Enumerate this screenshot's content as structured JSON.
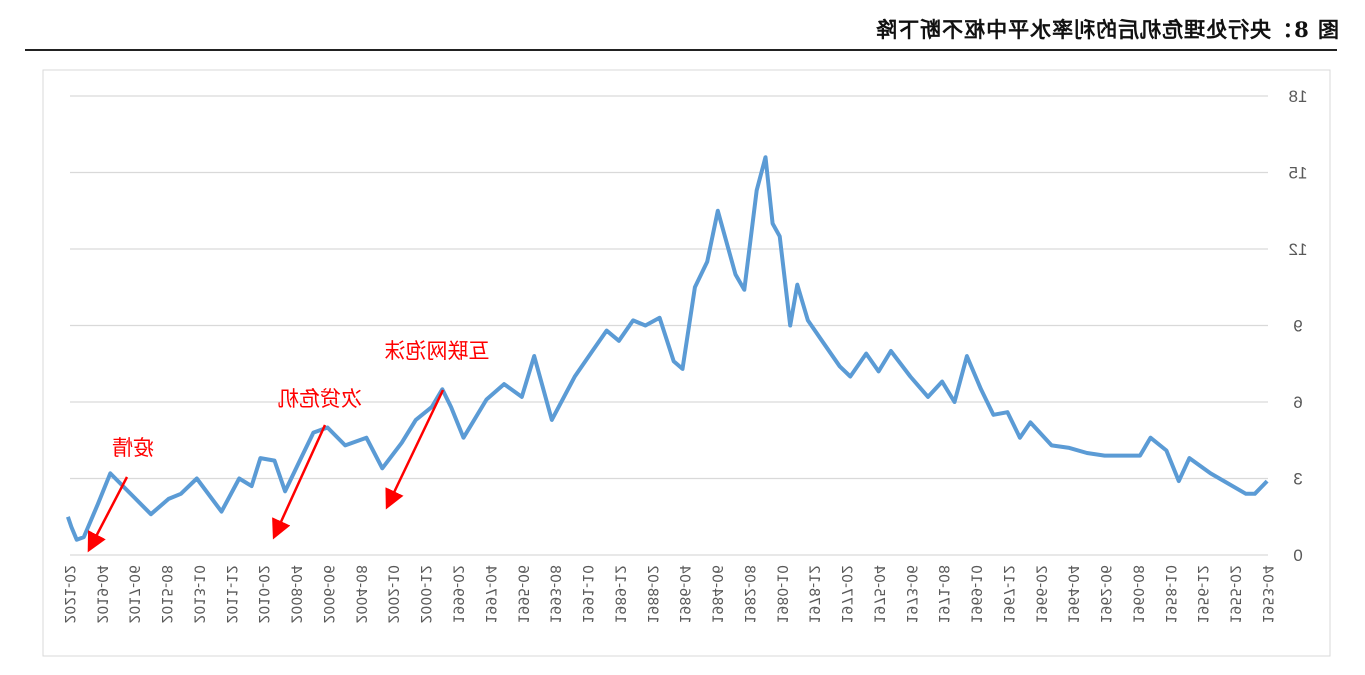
{
  "title": "图 8：央行处理危机后的利率水平中枢不断下降",
  "chart_data": {
    "type": "line",
    "title": "",
    "xlabel": "",
    "ylabel": "",
    "ylim": [
      0,
      18
    ],
    "yticks": [
      0,
      3,
      6,
      9,
      12,
      15,
      18
    ],
    "grid": true,
    "mirrored": true,
    "line_color": "#5b9bd5",
    "xtick_labels": [
      "1953-04",
      "1955-02",
      "1956-12",
      "1958-10",
      "1960-08",
      "1962-06",
      "1964-04",
      "1966-02",
      "1967-12",
      "1969-10",
      "1971-08",
      "1973-06",
      "1975-04",
      "1977-02",
      "1978-12",
      "1980-10",
      "1982-08",
      "1984-06",
      "1986-04",
      "1988-02",
      "1989-12",
      "1991-10",
      "1993-08",
      "1995-06",
      "1997-04",
      "1999-02",
      "2000-12",
      "2002-10",
      "2004-08",
      "2006-06",
      "2008-04",
      "2010-02",
      "2011-12",
      "2013-10",
      "2015-08",
      "2017-06",
      "2019-04",
      "2021-02"
    ],
    "series": [
      {
        "x": [
          1953.3,
          1954.0,
          1954.5,
          1955.5,
          1956.5,
          1957.7,
          1958.3,
          1959.0,
          1959.9,
          1960.5,
          1961.5,
          1962.5,
          1963.5,
          1964.5,
          1965.5,
          1966.7,
          1967.3,
          1968.0,
          1968.8,
          1969.5,
          1970.3,
          1971.0,
          1971.7,
          1972.5,
          1973.5,
          1974.6,
          1975.3,
          1976.0,
          1976.9,
          1977.5,
          1978.5,
          1979.3,
          1979.9,
          1980.3,
          1980.9,
          1981.3,
          1981.7,
          1982.2,
          1982.9,
          1983.4,
          1984.4,
          1985.0,
          1985.7,
          1986.4,
          1986.9,
          1987.7,
          1988.5,
          1989.2,
          1990.0,
          1990.7,
          1991.5,
          1992.5,
          1993.8,
          1994.8,
          1995.5,
          1996.5,
          1997.5,
          1998.8,
          1999.5,
          2000.0,
          2000.6,
          2001.5,
          2002.3,
          2003.4,
          2004.3,
          2005.5,
          2006.5,
          2007.3,
          2008.0,
          2008.9,
          2009.5,
          2010.3,
          2010.8,
          2011.5,
          2012.5,
          2013.9,
          2014.8,
          2015.5,
          2016.5,
          2017.5,
          2018.8,
          2019.5,
          2020.3,
          2020.7,
          2021.0,
          2021.2
        ],
        "y": [
          2.9,
          2.4,
          2.4,
          2.8,
          3.2,
          3.8,
          2.9,
          4.1,
          4.6,
          3.9,
          3.9,
          3.9,
          4.0,
          4.2,
          4.3,
          5.2,
          4.6,
          5.6,
          5.5,
          6.5,
          7.8,
          6.0,
          6.8,
          6.2,
          7.0,
          8.0,
          7.2,
          7.9,
          7.0,
          7.4,
          8.4,
          9.2,
          10.6,
          9.0,
          12.5,
          13.0,
          15.6,
          14.3,
          10.4,
          11.0,
          13.5,
          11.5,
          10.5,
          7.3,
          7.6,
          9.3,
          9.0,
          9.2,
          8.4,
          8.8,
          8.0,
          7.0,
          5.3,
          7.8,
          6.2,
          6.7,
          6.1,
          4.6,
          5.8,
          6.5,
          5.8,
          5.3,
          4.4,
          3.4,
          4.6,
          4.3,
          5.0,
          4.8,
          3.8,
          2.5,
          3.7,
          3.8,
          2.7,
          3.0,
          1.7,
          3.0,
          2.4,
          2.2,
          1.6,
          2.3,
          3.2,
          2.0,
          0.7,
          0.6,
          1.1,
          1.5
        ]
      }
    ],
    "annotations": [
      {
        "text": "疫情",
        "color": "#ff0000"
      },
      {
        "text": "次贷危机",
        "color": "#ff0000"
      },
      {
        "text": "互联网泡沫",
        "color": "#ff0000"
      }
    ]
  }
}
